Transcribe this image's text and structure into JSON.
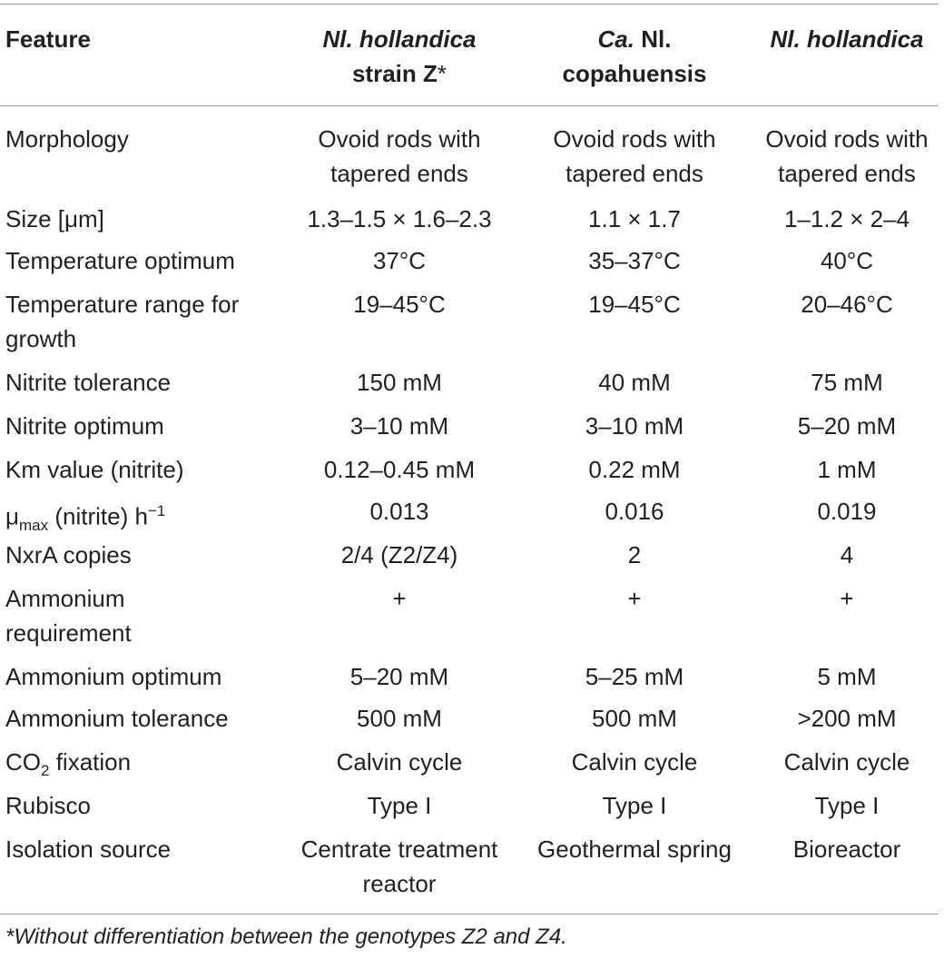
{
  "header": {
    "col0": "Feature",
    "col1_line1": "Nl. hollandica",
    "col1_line2": "strain Z",
    "col1_mark": "*",
    "col2_line1_italic": "Ca.",
    "col2_line1_rest": " Nl.",
    "col2_line2": "copahuensis",
    "col3_line1": "Nl. hollandica"
  },
  "rows": [
    {
      "feature": [
        "Morphology"
      ],
      "v1": [
        "Ovoid rods with",
        "tapered ends"
      ],
      "v2": [
        "Ovoid rods with",
        "tapered ends"
      ],
      "v3": [
        "Ovoid rods with",
        "tapered ends"
      ]
    },
    {
      "feature": [
        "Size [μm]"
      ],
      "v1": [
        "1.3–1.5 × 1.6–2.3"
      ],
      "v2": [
        "1.1 × 1.7"
      ],
      "v3": [
        "1–1.2 × 2–4"
      ]
    },
    {
      "feature": [
        "Temperature optimum"
      ],
      "v1": [
        "37°C"
      ],
      "v2": [
        "35–37°C"
      ],
      "v3": [
        "40°C"
      ]
    },
    {
      "feature": [
        "Temperature range for",
        "growth"
      ],
      "v1": [
        "19–45°C"
      ],
      "v2": [
        "19–45°C"
      ],
      "v3": [
        "20–46°C"
      ]
    },
    {
      "feature": [
        "Nitrite tolerance"
      ],
      "v1": [
        "150 mM"
      ],
      "v2": [
        "40 mM"
      ],
      "v3": [
        "75 mM"
      ]
    },
    {
      "feature": [
        "Nitrite optimum"
      ],
      "v1": [
        "3–10 mM"
      ],
      "v2": [
        "3–10 mM"
      ],
      "v3": [
        "5–20 mM"
      ]
    },
    {
      "feature": [
        "Km value (nitrite)"
      ],
      "v1": [
        "0.12–0.45 mM"
      ],
      "v2": [
        "0.22 mM"
      ],
      "v3": [
        "1 mM"
      ]
    },
    {
      "feature": [
        "μmax (nitrite) h−1"
      ],
      "v1": [
        "0.013"
      ],
      "v2": [
        "0.016"
      ],
      "v3": [
        "0.019"
      ]
    },
    {
      "feature": [
        "NxrA copies"
      ],
      "v1": [
        "2/4 (Z2/Z4)"
      ],
      "v2": [
        "2"
      ],
      "v3": [
        "4"
      ]
    },
    {
      "feature": [
        "Ammonium",
        "requirement"
      ],
      "v1": [
        "+"
      ],
      "v2": [
        "+"
      ],
      "v3": [
        "+"
      ]
    },
    {
      "feature": [
        "Ammonium optimum"
      ],
      "v1": [
        "5–20 mM"
      ],
      "v2": [
        "5–25 mM"
      ],
      "v3": [
        "5 mM"
      ]
    },
    {
      "feature": [
        "Ammonium tolerance"
      ],
      "v1": [
        "500 mM"
      ],
      "v2": [
        "500 mM"
      ],
      "v3": [
        ">200 mM"
      ]
    },
    {
      "feature": [
        "CO2 fixation"
      ],
      "v1": [
        "Calvin cycle"
      ],
      "v2": [
        "Calvin cycle"
      ],
      "v3": [
        "Calvin cycle"
      ]
    },
    {
      "feature": [
        "Rubisco"
      ],
      "v1": [
        "Type I"
      ],
      "v2": [
        "Type I"
      ],
      "v3": [
        "Type I"
      ]
    },
    {
      "feature": [
        "Isolation source"
      ],
      "v1": [
        "Centrate treatment",
        "reactor"
      ],
      "v2": [
        "Geothermal spring"
      ],
      "v3": [
        "Bioreactor"
      ]
    }
  ],
  "footnote": "*Without differentiation between the genotypes Z2 and Z4."
}
